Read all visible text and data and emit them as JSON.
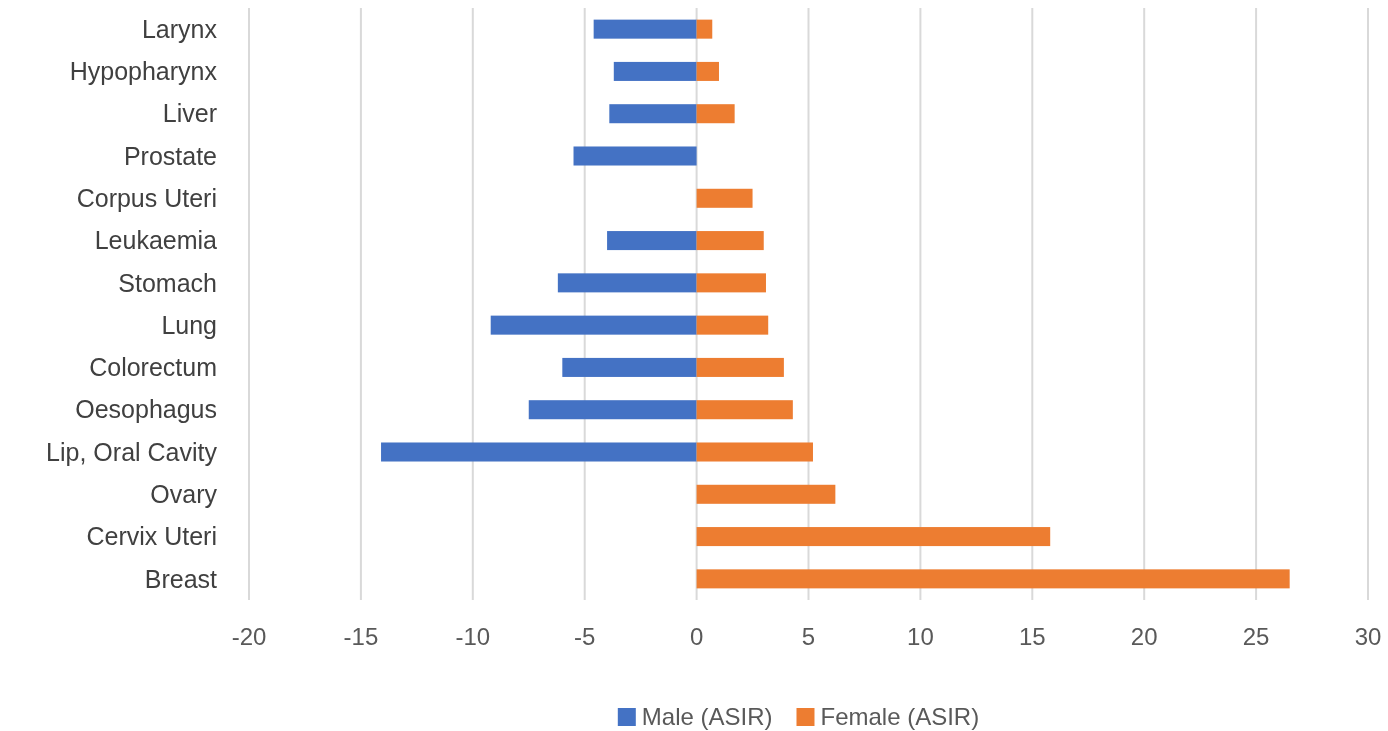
{
  "chart_data": {
    "type": "bar",
    "orientation": "horizontal",
    "stacked": true,
    "categories": [
      "Larynx",
      "Hypopharynx",
      "Liver",
      "Prostate",
      "Corpus Uteri",
      "Leukaemia",
      "Stomach",
      "Lung",
      "Colorectum",
      "Oesophagus",
      "Lip, Oral Cavity",
      "Ovary",
      "Cervix Uteri",
      "Breast"
    ],
    "series": [
      {
        "name": "Male (ASIR)",
        "color": "#4472c4",
        "values": [
          -4.6,
          -3.7,
          -3.9,
          -5.5,
          null,
          -4.0,
          -6.2,
          -9.2,
          -6.0,
          -7.5,
          -14.1,
          null,
          null,
          null
        ]
      },
      {
        "name": "Female (ASIR)",
        "color": "#ed7d31",
        "values": [
          0.7,
          1.0,
          1.7,
          null,
          2.5,
          3.0,
          3.1,
          3.2,
          3.9,
          4.3,
          5.2,
          6.2,
          15.8,
          26.5
        ]
      }
    ],
    "xlim": [
      -20,
      30
    ],
    "xticks": [
      -20,
      -15,
      -10,
      -5,
      0,
      5,
      10,
      15,
      20,
      25,
      30
    ],
    "grid": "x",
    "legend": "bottom"
  }
}
